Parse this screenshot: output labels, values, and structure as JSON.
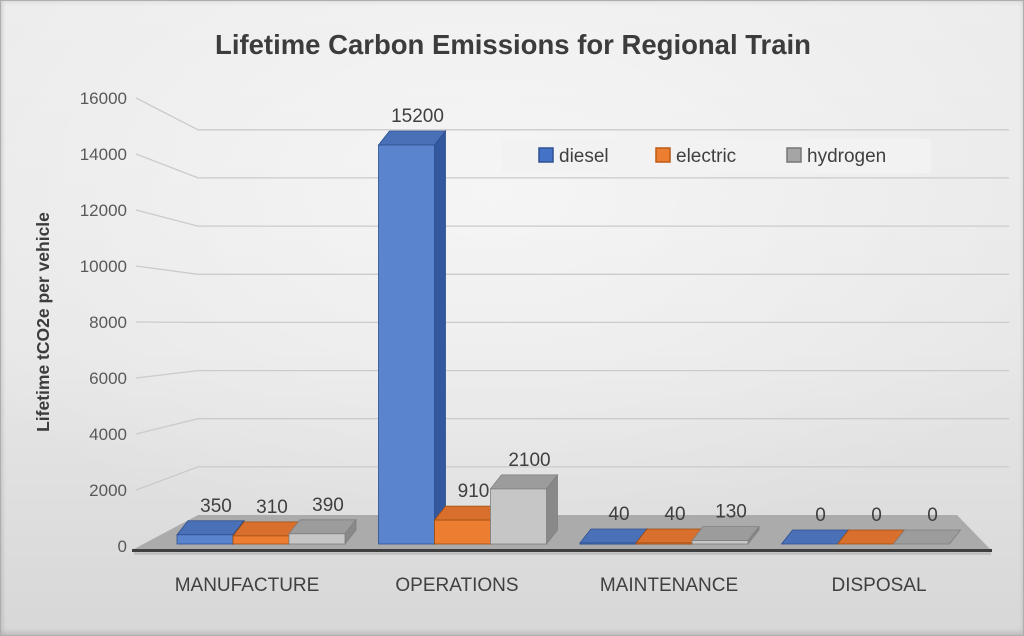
{
  "chart_data": {
    "type": "bar",
    "variant": "3d-clustered-column",
    "title": "Lifetime Carbon Emissions for Regional Train",
    "ylabel": "Lifetime tCO2e per vehicle",
    "xlabel": "",
    "categories": [
      "MANUFACTURE",
      "OPERATIONS",
      "MAINTENANCE",
      "DISPOSAL"
    ],
    "series": [
      {
        "name": "diesel",
        "color": "#4472C4",
        "values": [
          350,
          15200,
          40,
          0
        ],
        "faces": {
          "front": "#5b84cf",
          "top": "#4a70b8",
          "side": "#33589e",
          "edge": "#2e4f8e"
        }
      },
      {
        "name": "electric",
        "color": "#ED7D31",
        "values": [
          310,
          910,
          40,
          0
        ],
        "faces": {
          "front": "#ec7d31",
          "top": "#d96f2c",
          "side": "#b05a1a",
          "edge": "#9c4e13"
        }
      },
      {
        "name": "hydrogen",
        "color": "#A5A5A5",
        "values": [
          390,
          2100,
          130,
          0
        ],
        "faces": {
          "front": "#c6c6c6",
          "top": "#9c9c9c",
          "side": "#898989",
          "edge": "#7f7f7f"
        }
      }
    ],
    "ylim": [
      0,
      16000
    ],
    "ytick_step": 2000,
    "grid": true,
    "data_labels": true,
    "legend_position": "top-right-inside",
    "legend_entries": [
      "diesel",
      "electric",
      "hydrogen"
    ]
  },
  "styling": {
    "gridline_color": "#cbcbcb",
    "floor_color": "#ababab",
    "floor_edge_color": "#3f3f3f",
    "floor_under_color": "#bdbdbd",
    "legend_bg": "#f2f2f2",
    "legend_swatch_borders": [
      "#2e5192",
      "#bc5b14",
      "#767676"
    ]
  }
}
